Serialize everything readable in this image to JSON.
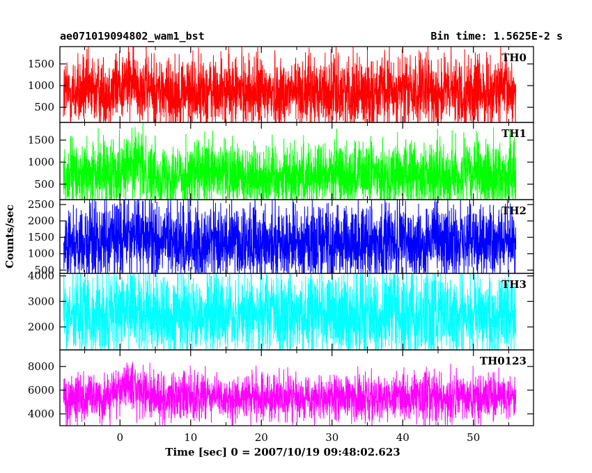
{
  "header": {
    "left": "ae071019094802_wam1_bst",
    "right": "Bin time: 1.5625E-2 s"
  },
  "chart_data": {
    "type": "line",
    "title": "ae071019094802_wam1_bst",
    "bin_time_label": "Bin time: 1.5625E-2 s",
    "xlabel": "Time [sec] 0 = 2007/10/19 09:48:02.623",
    "ylabel": "Counts/sec",
    "xlim": [
      -8.5,
      58.5
    ],
    "xticks": [
      0,
      10,
      20,
      30,
      40,
      50
    ],
    "xtick_labels": [
      "0",
      "10",
      "20",
      "30",
      "40",
      "50"
    ],
    "data_x_range": [
      -8,
      56
    ],
    "panels": [
      {
        "name": "TH0",
        "color": "#ff0000",
        "ylim": [
          150,
          1900
        ],
        "yticks": [
          500,
          1000,
          1500
        ],
        "ytick_labels": [
          "500",
          "1000",
          "1500"
        ],
        "baseline": 850,
        "spread": 420,
        "burst": {
          "peak_time": 1.5,
          "width": 2.5,
          "amplitude": 220
        },
        "x": [
          -8,
          -4,
          0,
          1.5,
          4,
          8,
          16,
          24,
          32,
          40,
          48,
          56
        ],
        "mean": [
          850,
          860,
          920,
          1070,
          930,
          870,
          860,
          850,
          850,
          850,
          850,
          850
        ]
      },
      {
        "name": "TH1",
        "color": "#00ff00",
        "ylim": [
          150,
          1900
        ],
        "yticks": [
          500,
          1000,
          1500
        ],
        "ytick_labels": [
          "500",
          "1000",
          "1500"
        ],
        "baseline": 700,
        "spread": 380,
        "burst": {
          "peak_time": 1.5,
          "width": 2.5,
          "amplitude": 250
        },
        "x": [
          -8,
          -4,
          0,
          1.5,
          4,
          8,
          16,
          24,
          32,
          40,
          48,
          56
        ],
        "mean": [
          700,
          710,
          790,
          950,
          800,
          720,
          710,
          700,
          700,
          700,
          700,
          700
        ]
      },
      {
        "name": "TH2",
        "color": "#0000ff",
        "ylim": [
          400,
          2650
        ],
        "yticks": [
          500,
          1000,
          1500,
          2000,
          2500
        ],
        "ytick_labels": [
          "500",
          "1000",
          "1500",
          "2000",
          "2500"
        ],
        "baseline": 1350,
        "spread": 600,
        "burst": {
          "peak_time": 1.5,
          "width": 2.5,
          "amplitude": 250
        },
        "x": [
          -8,
          -4,
          0,
          1.5,
          4,
          8,
          16,
          24,
          32,
          40,
          48,
          56
        ],
        "mean": [
          1350,
          1360,
          1430,
          1600,
          1450,
          1370,
          1360,
          1350,
          1350,
          1350,
          1350,
          1350
        ]
      },
      {
        "name": "TH3",
        "color": "#00ffff",
        "ylim": [
          1100,
          4100
        ],
        "yticks": [
          2000,
          3000,
          4000
        ],
        "ytick_labels": [
          "2000",
          "3000",
          "4000"
        ],
        "baseline": 2500,
        "spread": 850,
        "burst": {
          "peak_time": 1.5,
          "width": 2.5,
          "amplitude": 80
        },
        "x": [
          -8,
          -4,
          0,
          1.5,
          4,
          8,
          16,
          24,
          32,
          40,
          48,
          56
        ],
        "mean": [
          2500,
          2500,
          2530,
          2580,
          2540,
          2510,
          2500,
          2500,
          2500,
          2500,
          2500,
          2500
        ]
      },
      {
        "name": "TH0123",
        "color": "#ff00ff",
        "ylim": [
          3000,
          9400
        ],
        "yticks": [
          4000,
          6000,
          8000
        ],
        "ytick_labels": [
          "4000",
          "6000",
          "8000"
        ],
        "baseline": 5350,
        "spread": 1000,
        "burst": {
          "peak_time": 1.5,
          "width": 2.5,
          "amplitude": 800
        },
        "x": [
          -8,
          -4,
          0,
          1.5,
          4,
          8,
          16,
          24,
          32,
          40,
          48,
          56
        ],
        "mean": [
          5350,
          5400,
          5800,
          6150,
          5800,
          5450,
          5400,
          5350,
          5350,
          5350,
          5350,
          5350
        ]
      }
    ]
  }
}
